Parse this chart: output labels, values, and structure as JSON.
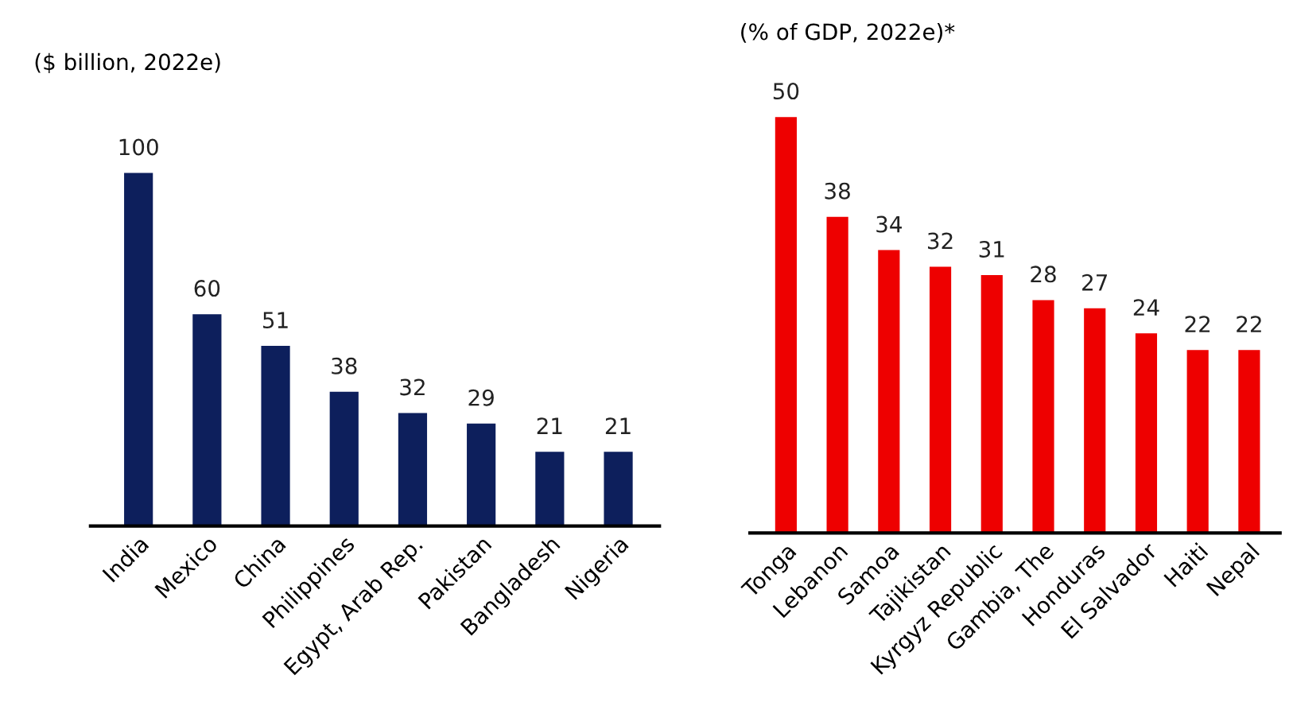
{
  "chart_data": [
    {
      "type": "bar",
      "title": "($ billion, 2022e)",
      "categories": [
        "India",
        "Mexico",
        "China",
        "Philippines",
        "Egypt, Arab Rep.",
        "Pakistan",
        "Bangladesh",
        "Nigeria"
      ],
      "values": [
        100,
        60,
        51,
        38,
        32,
        29,
        21,
        21
      ],
      "color": "#0d1f5c",
      "data_labels": true,
      "tick_labels": "x"
    },
    {
      "type": "bar",
      "title": "(% of GDP, 2022e)*",
      "categories": [
        "Tonga",
        "Lebanon",
        "Samoa",
        "Tajikistan",
        "Kyrgyz Republic",
        "Gambia, The",
        "Honduras",
        "El Salvador",
        "Haiti",
        "Nepal"
      ],
      "values": [
        50,
        38,
        34,
        32,
        31,
        28,
        27,
        24,
        22,
        22
      ],
      "color": "#ee0000",
      "data_labels": true,
      "tick_labels": "x"
    }
  ]
}
